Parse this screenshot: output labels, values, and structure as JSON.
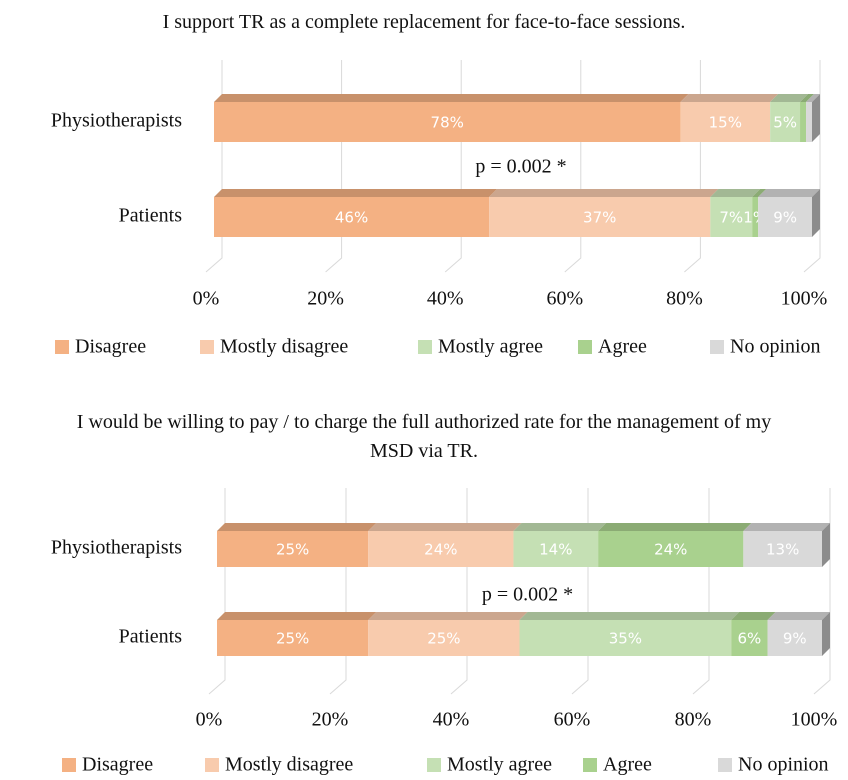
{
  "chart_data": [
    {
      "type": "bar",
      "orientation": "horizontal",
      "stacked": true,
      "title": "I support TR as a complete replacement for face-to-face sessions.",
      "annotation": "p = 0.002 *",
      "categories": [
        "Physiotherapists",
        "Patients"
      ],
      "series": [
        {
          "name": "Disagree",
          "color": "#f4b183",
          "values": [
            78,
            46
          ],
          "value_labels": [
            "78%",
            "46%"
          ]
        },
        {
          "name": "Mostly disagree",
          "color": "#f8cbad",
          "values": [
            15,
            37
          ],
          "value_labels": [
            "15%",
            "37%"
          ]
        },
        {
          "name": "Mostly agree",
          "color": "#c5e0b4",
          "values": [
            5,
            7
          ],
          "value_labels": [
            "5%",
            "7%"
          ]
        },
        {
          "name": "Agree",
          "color": "#a9d18e",
          "values": [
            1,
            1
          ],
          "value_labels": [
            null,
            "1%"
          ]
        },
        {
          "name": "No opinion",
          "color": "#d9d9d9",
          "values": [
            1,
            9
          ],
          "value_labels": [
            null,
            "9%"
          ]
        }
      ],
      "xlim": [
        0,
        100
      ],
      "xticks": [
        {
          "value": 0,
          "label": "0%"
        },
        {
          "value": 20,
          "label": "20%"
        },
        {
          "value": 40,
          "label": "40%"
        },
        {
          "value": 60,
          "label": "60%"
        },
        {
          "value": 80,
          "label": "80%"
        },
        {
          "value": 100,
          "label": "100%"
        }
      ],
      "legend": "bottom"
    },
    {
      "type": "bar",
      "orientation": "horizontal",
      "stacked": true,
      "title": "I would be willing to pay / to charge the full authorized rate for the management of my MSD via TR.",
      "annotation": "p = 0.002 *",
      "categories": [
        "Physiotherapists",
        "Patients"
      ],
      "series": [
        {
          "name": "Disagree",
          "color": "#f4b183",
          "values": [
            25,
            25
          ],
          "value_labels": [
            "25%",
            "25%"
          ]
        },
        {
          "name": "Mostly disagree",
          "color": "#f8cbad",
          "values": [
            24,
            25
          ],
          "value_labels": [
            "24%",
            "25%"
          ]
        },
        {
          "name": "Mostly agree",
          "color": "#c5e0b4",
          "values": [
            14,
            35
          ],
          "value_labels": [
            "14%",
            "35%"
          ]
        },
        {
          "name": "Agree",
          "color": "#a9d18e",
          "values": [
            24,
            6
          ],
          "value_labels": [
            "24%",
            "6%"
          ]
        },
        {
          "name": "No opinion",
          "color": "#d9d9d9",
          "values": [
            13,
            9
          ],
          "value_labels": [
            "13%",
            "9%"
          ]
        }
      ],
      "xlim": [
        0,
        100
      ],
      "xticks": [
        {
          "value": 0,
          "label": "0%"
        },
        {
          "value": 20,
          "label": "20%"
        },
        {
          "value": 40,
          "label": "40%"
        },
        {
          "value": 60,
          "label": "60%"
        },
        {
          "value": 80,
          "label": "80%"
        },
        {
          "value": 100,
          "label": "100%"
        }
      ],
      "legend": "bottom"
    }
  ]
}
